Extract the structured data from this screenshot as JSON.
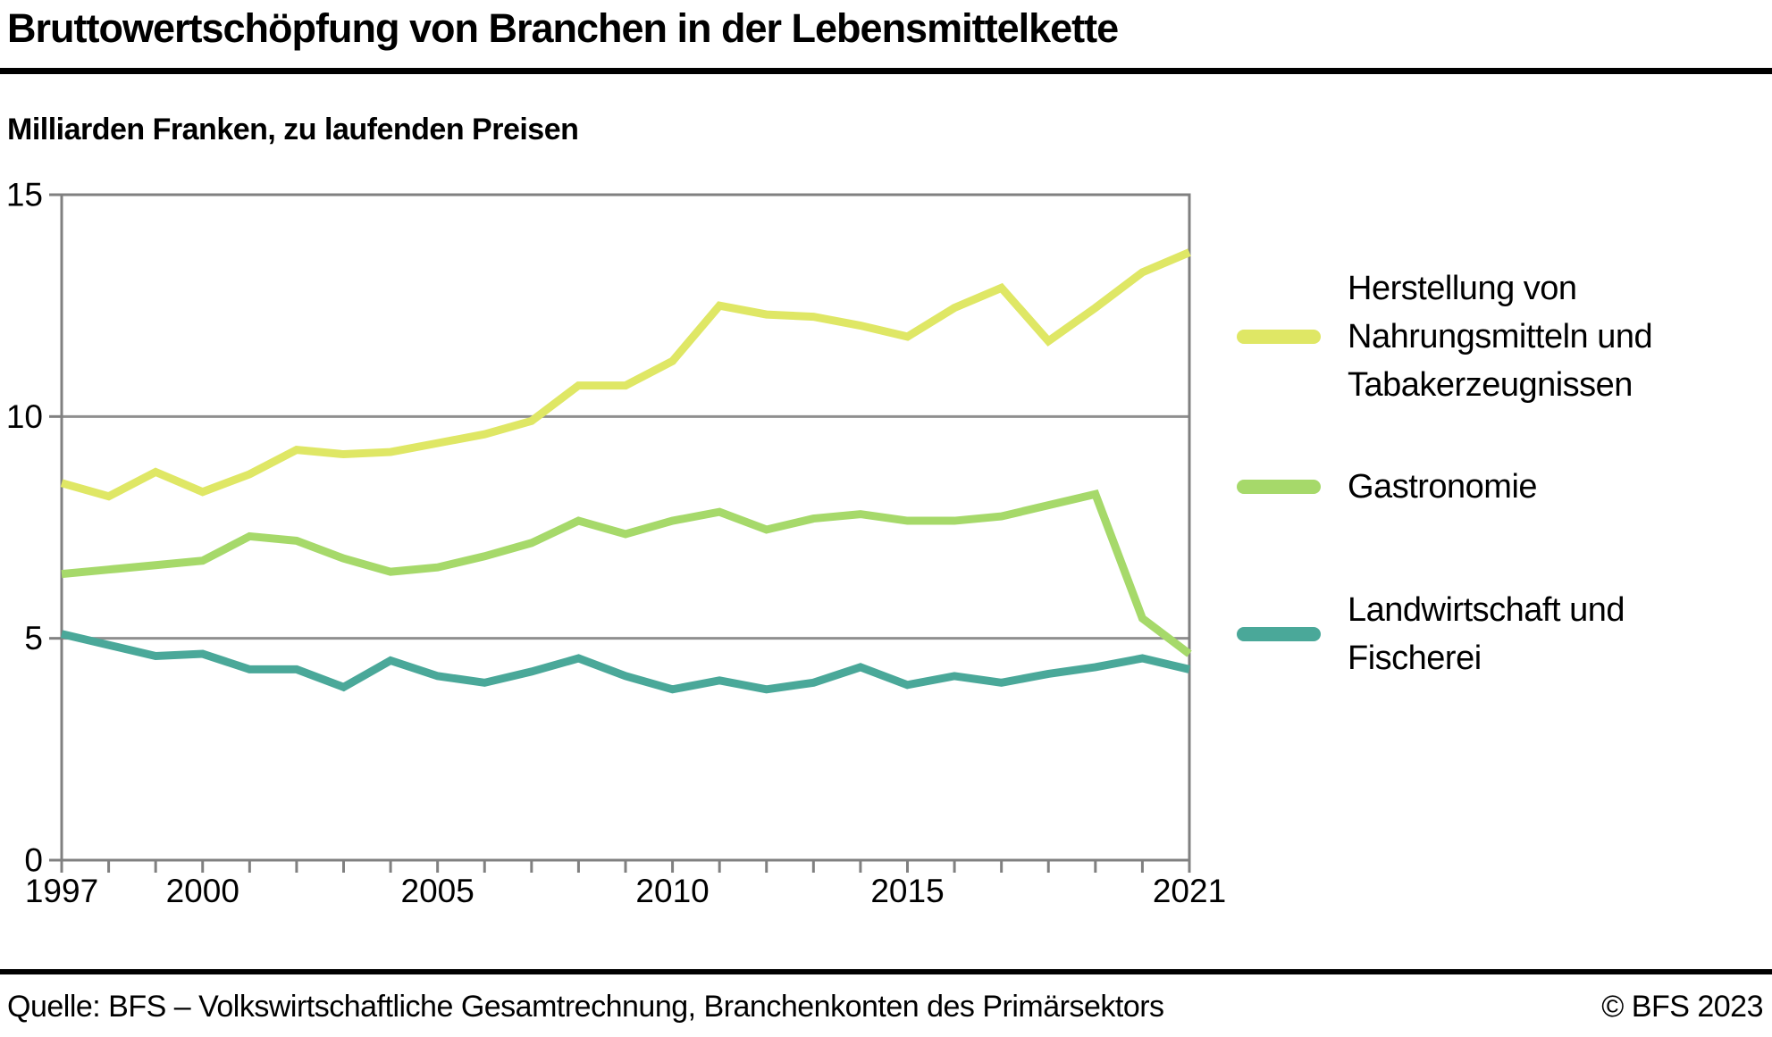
{
  "header": {
    "title": "Bruttowertschöpfung von Branchen in der Lebensmittelkette",
    "subtitle": "Milliarden Franken, zu laufenden Preisen"
  },
  "footer": {
    "source": "Quelle: BFS – Volkswirtschaftliche Gesamtrechnung, Branchenkonten des Primärsektors",
    "copyright": "© BFS 2023"
  },
  "legend": {
    "items": [
      {
        "lines": [
          "Herstellung von",
          "Nahrungsmitteln und",
          "Tabakerzeugnissen"
        ],
        "color": "#dfe765"
      },
      {
        "lines": [
          "Gastronomie"
        ],
        "color": "#a6d96a"
      },
      {
        "lines": [
          "Landwirtschaft und",
          "Fischerei"
        ],
        "color": "#4aa899"
      }
    ]
  },
  "chart_data": {
    "type": "line",
    "title": "Bruttowertschöpfung von Branchen in der Lebensmittelkette",
    "subtitle": "Milliarden Franken, zu laufenden Preisen",
    "xlabel": "",
    "ylabel": "Milliarden Franken",
    "x": [
      1997,
      1998,
      1999,
      2000,
      2001,
      2002,
      2003,
      2004,
      2005,
      2006,
      2007,
      2008,
      2009,
      2010,
      2011,
      2012,
      2013,
      2014,
      2015,
      2016,
      2017,
      2018,
      2019,
      2020,
      2021
    ],
    "series": [
      {
        "name": "Herstellung von Nahrungsmitteln und Tabakerzeugnissen",
        "color": "#dfe765",
        "values": [
          8.5,
          8.2,
          8.75,
          8.3,
          8.7,
          9.25,
          9.15,
          9.2,
          9.4,
          9.6,
          9.9,
          10.7,
          10.7,
          11.25,
          12.5,
          12.3,
          12.25,
          12.05,
          11.8,
          12.45,
          12.9,
          11.7,
          12.45,
          13.25,
          13.7
        ]
      },
      {
        "name": "Gastronomie",
        "color": "#a6d96a",
        "values": [
          6.45,
          6.55,
          6.65,
          6.75,
          7.3,
          7.2,
          6.8,
          6.5,
          6.6,
          6.85,
          7.15,
          7.65,
          7.35,
          7.65,
          7.85,
          7.45,
          7.7,
          7.8,
          7.65,
          7.65,
          7.75,
          8.0,
          8.25,
          5.45,
          4.65
        ]
      },
      {
        "name": "Landwirtschaft und Fischerei",
        "color": "#4aa899",
        "values": [
          5.1,
          4.85,
          4.6,
          4.65,
          4.3,
          4.3,
          3.9,
          4.5,
          4.15,
          4.0,
          4.25,
          4.55,
          4.15,
          3.85,
          4.05,
          3.85,
          4.0,
          4.35,
          3.95,
          4.15,
          4.0,
          4.2,
          4.35,
          4.55,
          4.3
        ]
      }
    ],
    "ylim": [
      0,
      15
    ],
    "y_ticks": [
      0,
      5,
      10,
      15
    ],
    "gridlines_y": [
      5,
      10
    ],
    "x_labeled_ticks": [
      1997,
      2000,
      2005,
      2010,
      2015,
      2021
    ],
    "grid": true,
    "legend_position": "right"
  }
}
